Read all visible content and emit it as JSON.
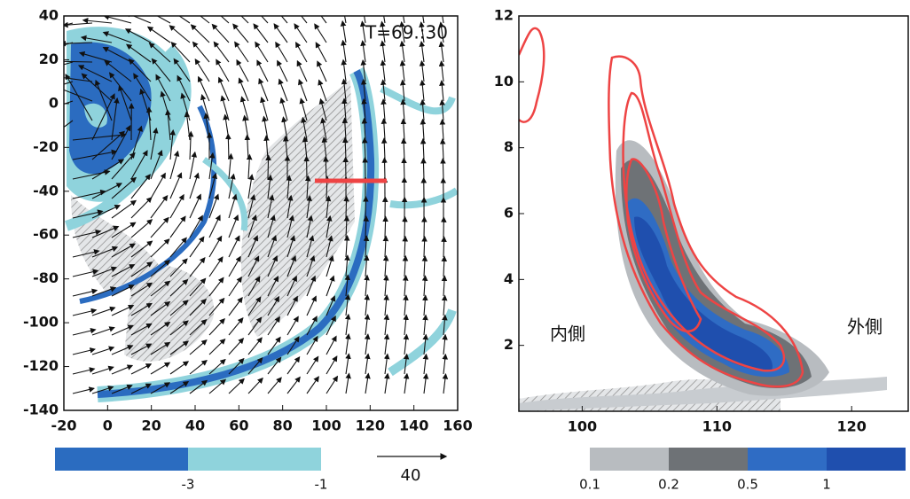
{
  "chart_data": [
    {
      "type": "quiver",
      "annotation": "T=69.:30",
      "xlim": [
        -20,
        160
      ],
      "ylim": [
        -140,
        40
      ],
      "xticks": [
        -20,
        0,
        20,
        40,
        60,
        80,
        100,
        120,
        140,
        160
      ],
      "yticks": [
        -140,
        -120,
        -100,
        -80,
        -60,
        -40,
        -20,
        0,
        20,
        40
      ],
      "colorbar": {
        "levels": [
          -3,
          -1
        ],
        "colors": [
          "#2b6cc0",
          "#8fd3dc"
        ]
      },
      "reference_vector": 40
    },
    {
      "type": "contour",
      "annotations": [
        "内側",
        "外側"
      ],
      "xlim": [
        95.3,
        124.2
      ],
      "ylim": [
        0,
        12
      ],
      "xticks": [
        100,
        110,
        120
      ],
      "yticks": [
        2,
        4,
        6,
        8,
        10,
        12
      ],
      "colorbar": {
        "levels": [
          0.1,
          0.2,
          0.5,
          1
        ],
        "colors": [
          "#b8bcc0",
          "#6e7276",
          "#2f6cc4",
          "#1f4fae"
        ]
      }
    }
  ]
}
